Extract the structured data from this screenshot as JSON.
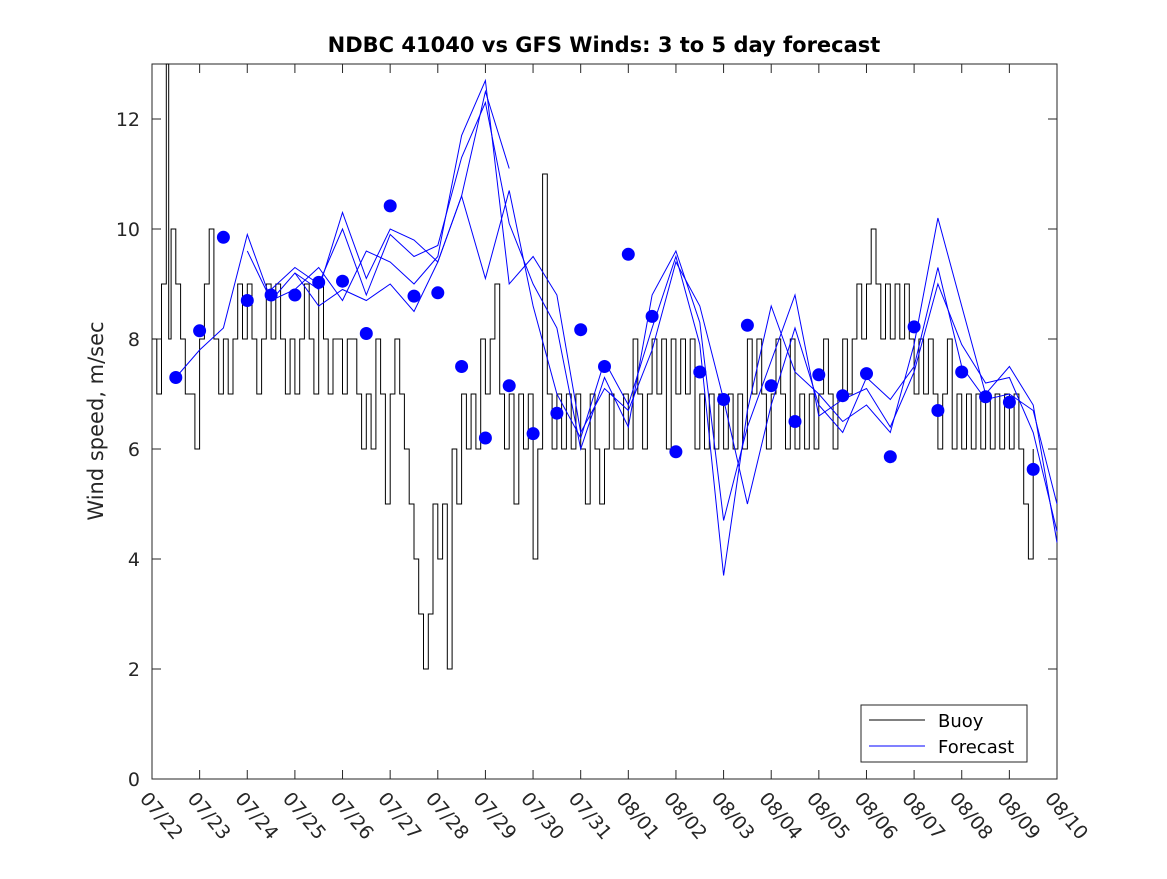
{
  "chart_data": {
    "type": "line",
    "title": "NDBC 41040 vs GFS Winds: 3 to 5 day forecast",
    "xlabel": "",
    "ylabel": "Wind speed, m/sec",
    "xlim": [
      "07/22",
      "08/10"
    ],
    "ylim": [
      0,
      13
    ],
    "x_ticks": [
      "07/22",
      "07/23",
      "07/24",
      "07/25",
      "07/26",
      "07/27",
      "07/28",
      "07/29",
      "07/30",
      "07/31",
      "08/01",
      "08/02",
      "08/03",
      "08/04",
      "08/05",
      "08/06",
      "08/07",
      "08/08",
      "08/09",
      "08/10"
    ],
    "y_ticks": [
      0,
      2,
      4,
      6,
      8,
      10,
      12
    ],
    "grid": false,
    "legend": {
      "position": "bottom-right",
      "entries": [
        "Buoy",
        "Forecast"
      ]
    },
    "colors": {
      "buoy": "#000000",
      "forecast": "#0000ff",
      "axis": "#262626"
    },
    "series": [
      {
        "name": "Buoy",
        "style": "step",
        "color": "#000000",
        "x_day_offset": [
          0.0,
          0.1,
          0.2,
          0.3,
          0.35,
          0.4,
          0.5,
          0.6,
          0.7,
          0.8,
          0.9,
          1.0,
          1.1,
          1.2,
          1.3,
          1.4,
          1.5,
          1.6,
          1.7,
          1.8,
          1.9,
          2.0,
          2.1,
          2.2,
          2.3,
          2.4,
          2.5,
          2.6,
          2.7,
          2.8,
          2.9,
          3.0,
          3.1,
          3.2,
          3.3,
          3.4,
          3.5,
          3.6,
          3.7,
          3.8,
          3.9,
          4.0,
          4.1,
          4.2,
          4.3,
          4.4,
          4.5,
          4.6,
          4.7,
          4.8,
          4.9,
          5.0,
          5.1,
          5.2,
          5.3,
          5.4,
          5.5,
          5.6,
          5.7,
          5.8,
          5.9,
          6.0,
          6.1,
          6.2,
          6.3,
          6.4,
          6.5,
          6.6,
          6.7,
          6.8,
          6.9,
          7.0,
          7.1,
          7.2,
          7.3,
          7.4,
          7.5,
          7.6,
          7.7,
          7.8,
          7.9,
          8.0,
          8.1,
          8.2,
          8.3,
          8.4,
          8.5,
          8.6,
          8.7,
          8.8,
          8.9,
          9.0,
          9.1,
          9.2,
          9.3,
          9.4,
          9.5,
          9.6,
          9.7,
          9.8,
          9.9,
          10.0,
          10.1,
          10.2,
          10.3,
          10.4,
          10.5,
          10.6,
          10.7,
          10.8,
          10.9,
          11.0,
          11.1,
          11.2,
          11.3,
          11.4,
          11.5,
          11.6,
          11.7,
          11.8,
          11.9,
          12.0,
          12.1,
          12.2,
          12.3,
          12.4,
          12.5,
          12.6,
          12.7,
          12.8,
          12.9,
          13.0,
          13.1,
          13.2,
          13.3,
          13.4,
          13.5,
          13.6,
          13.7,
          13.8,
          13.9,
          14.0,
          14.1,
          14.2,
          14.3,
          14.4,
          14.5,
          14.6,
          14.7,
          14.8,
          14.9,
          15.0,
          15.1,
          15.2,
          15.3,
          15.4,
          15.5,
          15.6,
          15.7,
          15.8,
          15.9,
          16.0,
          16.1,
          16.2,
          16.3,
          16.4,
          16.5,
          16.6,
          16.7,
          16.8,
          16.9,
          17.0,
          17.1,
          17.2,
          17.3,
          17.4,
          17.5,
          17.6,
          17.7,
          17.8,
          17.9,
          18.0,
          18.1,
          18.2,
          18.3,
          18.4,
          18.5,
          18.6,
          18.7,
          18.8,
          18.9,
          19.0
        ],
        "values": [
          8,
          7,
          9,
          13,
          8,
          10,
          9,
          8,
          7,
          7,
          6,
          8,
          9,
          10,
          8,
          7,
          8,
          7,
          8,
          9,
          8,
          9,
          8,
          7,
          8,
          9,
          8,
          9,
          8,
          7,
          8,
          7,
          8,
          9,
          8,
          7,
          9,
          8,
          7,
          8,
          8,
          7,
          8,
          8,
          7,
          6,
          7,
          6,
          8,
          7,
          5,
          7,
          8,
          7,
          6,
          5,
          4,
          3,
          2,
          3,
          5,
          4,
          5,
          2,
          6,
          5,
          7,
          6,
          7,
          6,
          8,
          7,
          8,
          9,
          7,
          6,
          7,
          5,
          7,
          6,
          7,
          4,
          6,
          11,
          7,
          6,
          7,
          6,
          7,
          6,
          7,
          6,
          5,
          7,
          6,
          5,
          6,
          7,
          6,
          6,
          7,
          6,
          8,
          7,
          6,
          7,
          8,
          7,
          8,
          6,
          8,
          7,
          8,
          7,
          8,
          6,
          7,
          6,
          7,
          6,
          7,
          6,
          7,
          6,
          7,
          6,
          8,
          7,
          8,
          7,
          6,
          7,
          8,
          7,
          6,
          8,
          6,
          7,
          6,
          7,
          6,
          7,
          8,
          7,
          6,
          7,
          8,
          7,
          8,
          9,
          8,
          9,
          10,
          9,
          8,
          9,
          8,
          9,
          8,
          9,
          8,
          7,
          8,
          7,
          8,
          7,
          6,
          7,
          8,
          6,
          7,
          6,
          7,
          6,
          7,
          6,
          7,
          6,
          7,
          6,
          7,
          6,
          7,
          6,
          5,
          4,
          6
        ]
      },
      {
        "name": "Forecast",
        "style": "line",
        "color": "#0000ff",
        "runs": [
          {
            "x_day_offset": [
              0.5,
              1.0,
              1.5,
              2.0,
              2.5,
              3.0,
              3.5,
              4.0,
              4.5,
              5.0,
              5.5,
              6.0,
              6.5,
              7.0,
              7.5
            ],
            "values": [
              7.3,
              7.8,
              8.2,
              9.9,
              8.7,
              9.2,
              8.6,
              8.9,
              8.7,
              9.0,
              8.5,
              9.4,
              10.6,
              12.5,
              11.1
            ]
          },
          {
            "x_day_offset": [
              2.0,
              2.5,
              3.0,
              3.5,
              4.0,
              4.5,
              5.0,
              5.5,
              6.0,
              6.5,
              7.0,
              7.5,
              8.0,
              8.5,
              9.0,
              9.5,
              10.0,
              10.5,
              11.0,
              11.5,
              12.0,
              12.5,
              13.0,
              13.5,
              14.0,
              14.5,
              15.0,
              15.5,
              16.0,
              16.5,
              17.0,
              17.5,
              18.0,
              18.5,
              19.0
            ],
            "values": [
              9.6,
              8.7,
              8.9,
              9.3,
              8.7,
              9.6,
              9.4,
              9.0,
              9.5,
              11.7,
              12.7,
              9.0,
              9.5,
              8.8,
              6.3,
              7.1,
              6.7,
              7.8,
              9.4,
              8.6,
              6.9,
              5.0,
              6.8,
              8.2,
              6.8,
              6.3,
              7.3,
              6.9,
              7.5,
              9.3,
              7.5,
              6.9,
              7.0,
              6.7,
              5.0
            ]
          },
          {
            "x_day_offset": [
              2.5,
              3.0,
              3.5,
              4.0,
              4.5,
              5.0,
              5.5,
              6.0,
              6.5,
              7.0,
              7.5,
              8.0,
              8.5,
              9.0,
              9.5,
              10.0,
              10.5,
              11.0,
              11.5,
              12.0,
              12.5,
              13.0,
              13.5,
              14.0,
              14.5,
              15.0,
              15.5,
              16.0,
              16.5,
              17.0,
              17.5,
              18.0,
              18.5,
              19.0
            ],
            "values": [
              8.9,
              9.3,
              9.0,
              10.0,
              8.8,
              9.9,
              9.5,
              9.7,
              11.3,
              12.3,
              10.1,
              9.0,
              8.2,
              6.0,
              7.3,
              6.4,
              8.8,
              9.6,
              8.3,
              4.7,
              6.4,
              7.6,
              8.8,
              6.6,
              6.9,
              7.1,
              6.4,
              7.4,
              9.0,
              7.9,
              7.2,
              7.3,
              6.3,
              4.5
            ]
          },
          {
            "x_day_offset": [
              3.0,
              3.5,
              4.0,
              4.5,
              5.0,
              5.5,
              6.0,
              6.5,
              7.0,
              7.5,
              8.0,
              8.5,
              9.0,
              9.5,
              10.0,
              10.5,
              11.0,
              11.5,
              12.0,
              12.5,
              13.0,
              13.5,
              14.0,
              14.5,
              15.0,
              15.5,
              16.0,
              16.5,
              17.0,
              17.5,
              18.0,
              18.5,
              19.0
            ],
            "values": [
              9.2,
              8.9,
              10.3,
              9.1,
              10.0,
              9.8,
              9.4,
              10.6,
              9.1,
              10.7,
              8.6,
              7.0,
              6.2,
              7.6,
              6.8,
              8.2,
              9.5,
              7.9,
              3.7,
              6.7,
              8.6,
              7.4,
              7.0,
              6.5,
              6.8,
              6.3,
              7.9,
              10.2,
              8.6,
              7.0,
              7.5,
              6.8,
              4.3
            ]
          }
        ]
      },
      {
        "name": "Forecast markers",
        "style": "marker",
        "color": "#0000ff",
        "x_day_offset": [
          0.5,
          1.0,
          1.5,
          2.0,
          2.5,
          3.0,
          3.5,
          4.0,
          4.5,
          5.0,
          5.5,
          6.0,
          6.5,
          7.0,
          7.5,
          8.0,
          8.5,
          9.0,
          9.5,
          10.0,
          10.5,
          11.0,
          11.5,
          12.0,
          12.5,
          13.0,
          13.5,
          14.0,
          14.5,
          15.0,
          15.5,
          16.0,
          16.5,
          17.0,
          17.5,
          18.0,
          18.5
        ],
        "values": [
          7.3,
          8.15,
          9.85,
          8.7,
          8.8,
          8.8,
          9.03,
          9.05,
          8.1,
          10.42,
          8.78,
          8.84,
          7.5,
          6.2,
          7.15,
          6.28,
          6.65,
          8.17,
          7.5,
          9.54,
          8.41,
          5.95,
          7.4,
          6.9,
          8.25,
          7.15,
          6.5,
          7.35,
          6.97,
          7.37,
          5.86,
          8.22,
          6.7,
          7.4,
          6.95,
          6.85,
          5.63
        ]
      }
    ]
  }
}
